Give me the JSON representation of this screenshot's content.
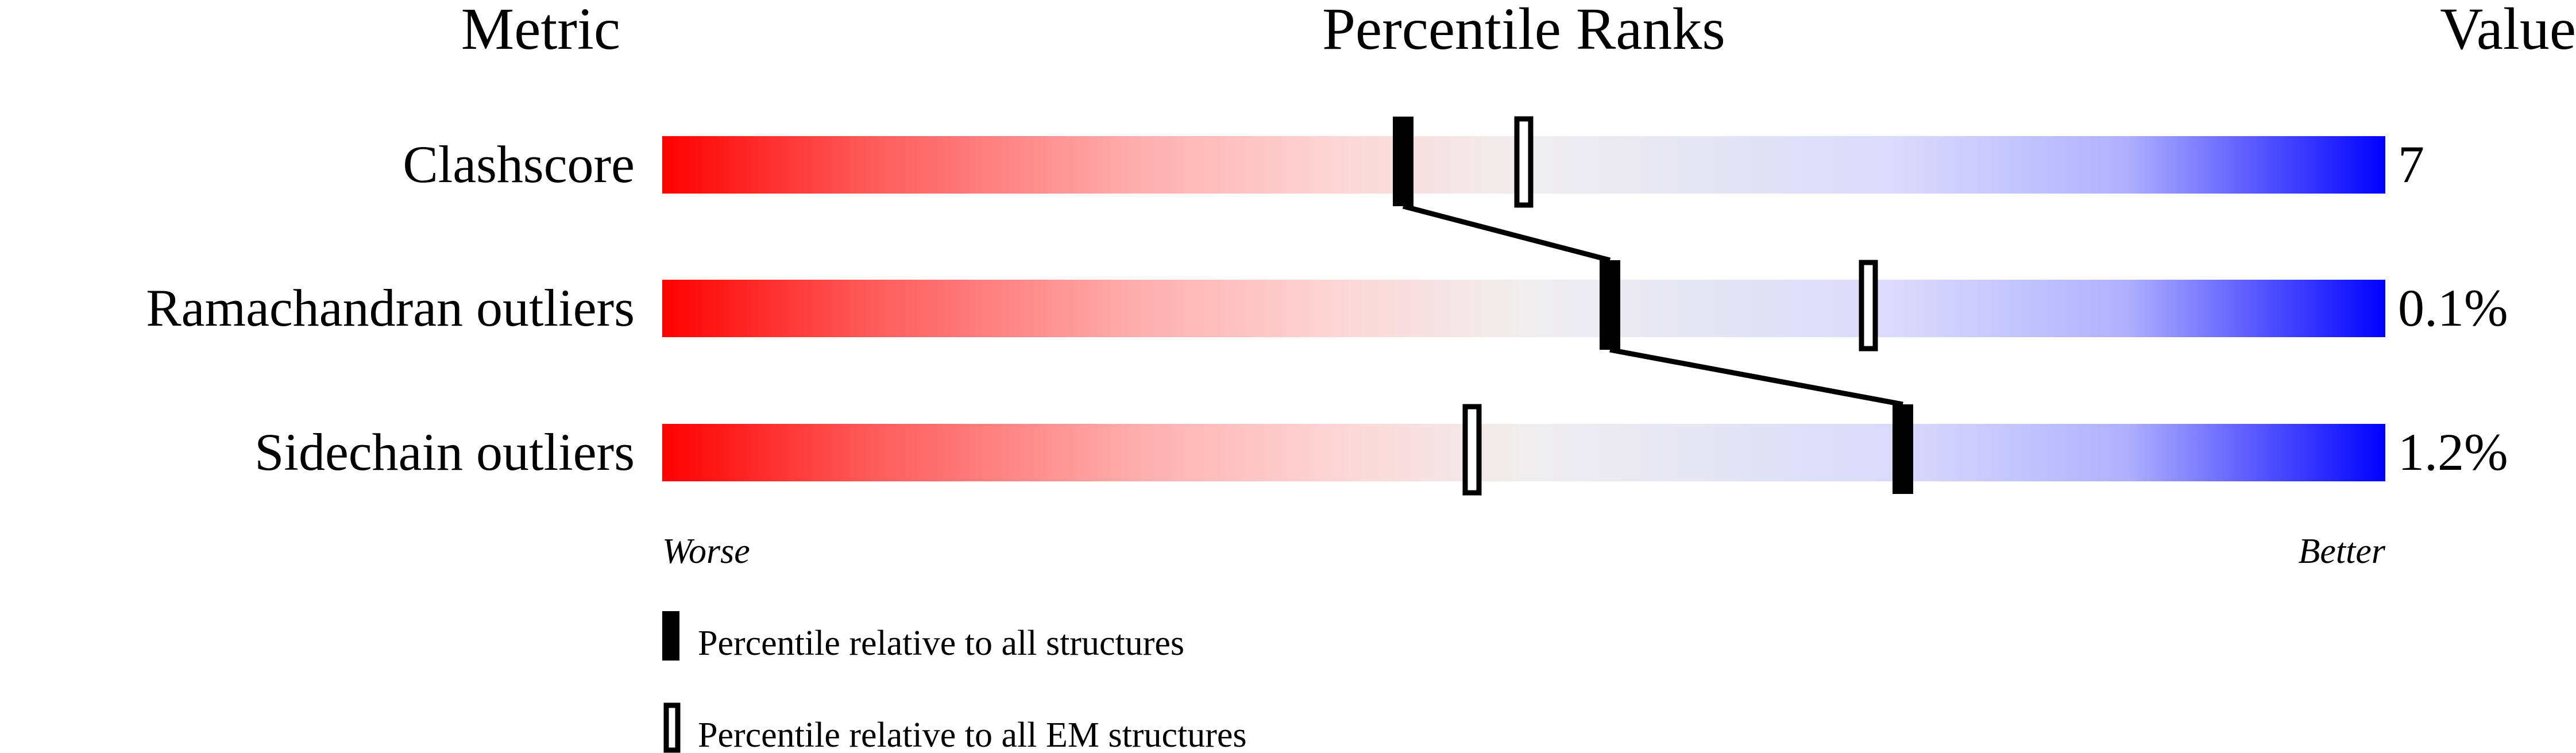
{
  "chart_data": {
    "type": "percentile-bar",
    "headers": {
      "metric": "Metric",
      "ranks": "Percentile Ranks",
      "value": "Value"
    },
    "xlim": [
      0,
      100
    ],
    "axis_left_label": "Worse",
    "axis_right_label": "Better",
    "gradient_colors": [
      "#ff0000",
      "#f0f0f0",
      "#0000ff"
    ],
    "rows": [
      {
        "metric": "Clashscore",
        "value": "7",
        "percentile_all": 43,
        "percentile_em": 50
      },
      {
        "metric": "Ramachandran outliers",
        "value": "0.1%",
        "percentile_all": 55,
        "percentile_em": 70
      },
      {
        "metric": "Sidechain outliers",
        "value": "1.2%",
        "percentile_all": 72,
        "percentile_em": 47
      }
    ],
    "legend": [
      {
        "marker": "filled",
        "label": "Percentile relative to all structures"
      },
      {
        "marker": "open",
        "label": "Percentile relative to all EM structures"
      }
    ]
  }
}
